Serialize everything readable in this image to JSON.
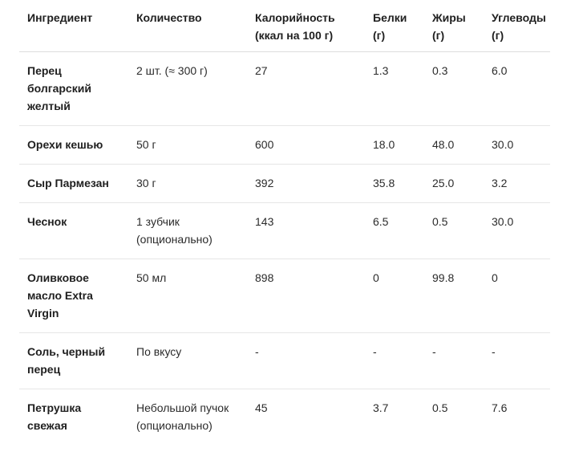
{
  "table": {
    "headers": [
      "Ингредиент",
      "Количество",
      "Калорийность (ккал на 100 г)",
      "Белки (г)",
      "Жиры (г)",
      "Углеводы (г)"
    ],
    "rows": [
      [
        "Перец болгарский желтый",
        "2 шт. (≈ 300 г)",
        "27",
        "1.3",
        "0.3",
        "6.0"
      ],
      [
        "Орехи кешью",
        "50 г",
        "600",
        "18.0",
        "48.0",
        "30.0"
      ],
      [
        "Сыр Пармезан",
        "30 г",
        "392",
        "35.8",
        "25.0",
        "3.2"
      ],
      [
        "Чеснок",
        "1 зубчик (опционально)",
        "143",
        "6.5",
        "0.5",
        "30.0"
      ],
      [
        "Оливковое масло Extra Virgin",
        "50 мл",
        "898",
        "0",
        "99.8",
        "0"
      ],
      [
        "Соль, черный перец",
        "По вкусу",
        "-",
        "-",
        "-",
        "-"
      ],
      [
        "Петрушка свежая",
        "Небольшой пучок (опционально)",
        "45",
        "3.7",
        "0.5",
        "7.6"
      ]
    ]
  }
}
